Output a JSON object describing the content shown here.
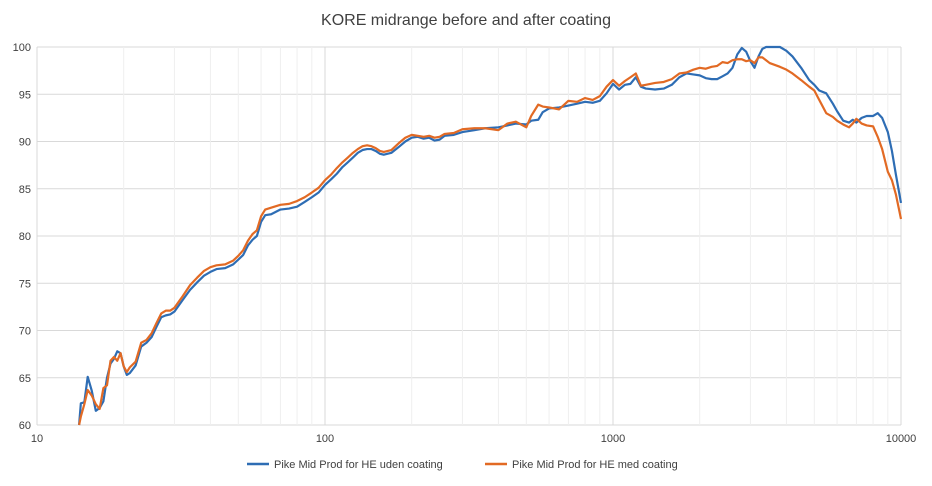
{
  "chart_data": {
    "type": "line",
    "title": "KORE midrange before and after coating",
    "xlabel": "",
    "ylabel": "",
    "x_scale": "log",
    "xlim": [
      10,
      10000
    ],
    "ylim": [
      60,
      100
    ],
    "x_ticks": [
      "10",
      "100",
      "1000",
      "10000"
    ],
    "y_ticks": [
      "60",
      "65",
      "70",
      "75",
      "80",
      "85",
      "90",
      "95",
      "100"
    ],
    "grid": true,
    "legend_position": "bottom",
    "series": [
      {
        "name": "Pike Mid Prod for HE uden coating",
        "color": "#2E6DB4",
        "points": [
          [
            14,
            60
          ],
          [
            14.2,
            62.3
          ],
          [
            14.6,
            62.4
          ],
          [
            15,
            65.1
          ],
          [
            15.5,
            63.6
          ],
          [
            16,
            61.5
          ],
          [
            16.5,
            61.8
          ],
          [
            17,
            62.5
          ],
          [
            17.5,
            65
          ],
          [
            18,
            66.5
          ],
          [
            18.5,
            67
          ],
          [
            19,
            67.8
          ],
          [
            19.5,
            67.6
          ],
          [
            20,
            66.2
          ],
          [
            20.5,
            65.3
          ],
          [
            21,
            65.5
          ],
          [
            22,
            66.3
          ],
          [
            23,
            68.3
          ],
          [
            24,
            68.7
          ],
          [
            25,
            69.3
          ],
          [
            26,
            70.4
          ],
          [
            27,
            71.4
          ],
          [
            28,
            71.6
          ],
          [
            29,
            71.7
          ],
          [
            30,
            72
          ],
          [
            32,
            73.2
          ],
          [
            34,
            74.3
          ],
          [
            36,
            75.1
          ],
          [
            38,
            75.8
          ],
          [
            40,
            76.2
          ],
          [
            42,
            76.5
          ],
          [
            45,
            76.6
          ],
          [
            48,
            77
          ],
          [
            50,
            77.5
          ],
          [
            52,
            78
          ],
          [
            54,
            79
          ],
          [
            56,
            79.6
          ],
          [
            58,
            80
          ],
          [
            60,
            81.5
          ],
          [
            62,
            82.2
          ],
          [
            65,
            82.3
          ],
          [
            70,
            82.8
          ],
          [
            75,
            82.9
          ],
          [
            80,
            83.1
          ],
          [
            85,
            83.6
          ],
          [
            90,
            84.1
          ],
          [
            95,
            84.6
          ],
          [
            100,
            85.4
          ],
          [
            105,
            86
          ],
          [
            110,
            86.6
          ],
          [
            115,
            87.3
          ],
          [
            120,
            87.8
          ],
          [
            125,
            88.3
          ],
          [
            130,
            88.8
          ],
          [
            135,
            89.1
          ],
          [
            140,
            89.2
          ],
          [
            145,
            89.2
          ],
          [
            150,
            89
          ],
          [
            155,
            88.7
          ],
          [
            160,
            88.6
          ],
          [
            170,
            88.8
          ],
          [
            180,
            89.4
          ],
          [
            190,
            90
          ],
          [
            200,
            90.4
          ],
          [
            210,
            90.5
          ],
          [
            220,
            90.3
          ],
          [
            230,
            90.4
          ],
          [
            240,
            90.1
          ],
          [
            250,
            90.2
          ],
          [
            260,
            90.6
          ],
          [
            280,
            90.7
          ],
          [
            300,
            91
          ],
          [
            330,
            91.2
          ],
          [
            360,
            91.4
          ],
          [
            400,
            91.5
          ],
          [
            430,
            91.7
          ],
          [
            460,
            91.9
          ],
          [
            500,
            91.8
          ],
          [
            520,
            92.2
          ],
          [
            550,
            92.3
          ],
          [
            570,
            93.1
          ],
          [
            600,
            93.5
          ],
          [
            650,
            93.6
          ],
          [
            700,
            93.8
          ],
          [
            750,
            94
          ],
          [
            800,
            94.2
          ],
          [
            850,
            94.1
          ],
          [
            900,
            94.3
          ],
          [
            950,
            95.1
          ],
          [
            1000,
            96.1
          ],
          [
            1050,
            95.5
          ],
          [
            1100,
            96
          ],
          [
            1150,
            96.1
          ],
          [
            1200,
            96.8
          ],
          [
            1250,
            95.8
          ],
          [
            1300,
            95.6
          ],
          [
            1400,
            95.5
          ],
          [
            1500,
            95.6
          ],
          [
            1600,
            96
          ],
          [
            1700,
            96.8
          ],
          [
            1800,
            97.2
          ],
          [
            1900,
            97.1
          ],
          [
            2000,
            97
          ],
          [
            2100,
            96.7
          ],
          [
            2200,
            96.6
          ],
          [
            2300,
            96.6
          ],
          [
            2400,
            96.9
          ],
          [
            2500,
            97.2
          ],
          [
            2600,
            97.8
          ],
          [
            2700,
            99.2
          ],
          [
            2800,
            99.9
          ],
          [
            2900,
            99.5
          ],
          [
            3000,
            98.5
          ],
          [
            3100,
            97.8
          ],
          [
            3200,
            99
          ],
          [
            3300,
            99.8
          ],
          [
            3400,
            100
          ],
          [
            3500,
            100
          ],
          [
            3800,
            100
          ],
          [
            4000,
            99.6
          ],
          [
            4200,
            99
          ],
          [
            4500,
            97.8
          ],
          [
            4800,
            96.5
          ],
          [
            5000,
            96
          ],
          [
            5200,
            95.4
          ],
          [
            5500,
            95.1
          ],
          [
            5800,
            94
          ],
          [
            6000,
            93.2
          ],
          [
            6300,
            92.2
          ],
          [
            6600,
            92
          ],
          [
            6800,
            92.3
          ],
          [
            7000,
            92
          ],
          [
            7300,
            92.5
          ],
          [
            7600,
            92.7
          ],
          [
            8000,
            92.7
          ],
          [
            8300,
            93
          ],
          [
            8600,
            92.5
          ],
          [
            9000,
            91
          ],
          [
            9300,
            89
          ],
          [
            9600,
            86.5
          ],
          [
            10000,
            83.5
          ]
        ]
      },
      {
        "name": "Pike Mid Prod for HE med coating",
        "color": "#E26A24",
        "points": [
          [
            14,
            59.9
          ],
          [
            14.2,
            60.9
          ],
          [
            14.6,
            62.2
          ],
          [
            15,
            63.7
          ],
          [
            15.5,
            63.1
          ],
          [
            16,
            62.2
          ],
          [
            16.5,
            61.7
          ],
          [
            17,
            63.9
          ],
          [
            17.5,
            64.2
          ],
          [
            18,
            66.8
          ],
          [
            18.5,
            67.2
          ],
          [
            19,
            66.8
          ],
          [
            19.5,
            67.6
          ],
          [
            20,
            66.2
          ],
          [
            20.5,
            65.6
          ],
          [
            21,
            66.1
          ],
          [
            22,
            66.7
          ],
          [
            23,
            68.7
          ],
          [
            24,
            69
          ],
          [
            25,
            69.7
          ],
          [
            26,
            70.8
          ],
          [
            27,
            71.8
          ],
          [
            28,
            72.1
          ],
          [
            29,
            72.1
          ],
          [
            30,
            72.4
          ],
          [
            32,
            73.6
          ],
          [
            34,
            74.8
          ],
          [
            36,
            75.6
          ],
          [
            38,
            76.3
          ],
          [
            40,
            76.7
          ],
          [
            42,
            76.9
          ],
          [
            45,
            77
          ],
          [
            48,
            77.4
          ],
          [
            50,
            77.9
          ],
          [
            52,
            78.5
          ],
          [
            54,
            79.5
          ],
          [
            56,
            80.2
          ],
          [
            58,
            80.6
          ],
          [
            60,
            82.1
          ],
          [
            62,
            82.8
          ],
          [
            65,
            83
          ],
          [
            70,
            83.3
          ],
          [
            75,
            83.4
          ],
          [
            80,
            83.7
          ],
          [
            85,
            84.1
          ],
          [
            90,
            84.6
          ],
          [
            95,
            85.1
          ],
          [
            100,
            85.9
          ],
          [
            105,
            86.5
          ],
          [
            110,
            87.2
          ],
          [
            115,
            87.8
          ],
          [
            120,
            88.3
          ],
          [
            125,
            88.8
          ],
          [
            130,
            89.2
          ],
          [
            135,
            89.5
          ],
          [
            140,
            89.6
          ],
          [
            145,
            89.5
          ],
          [
            150,
            89.3
          ],
          [
            155,
            89
          ],
          [
            160,
            88.9
          ],
          [
            170,
            89.1
          ],
          [
            180,
            89.8
          ],
          [
            190,
            90.4
          ],
          [
            200,
            90.7
          ],
          [
            210,
            90.6
          ],
          [
            220,
            90.5
          ],
          [
            230,
            90.6
          ],
          [
            240,
            90.4
          ],
          [
            250,
            90.5
          ],
          [
            260,
            90.8
          ],
          [
            280,
            90.9
          ],
          [
            300,
            91.3
          ],
          [
            330,
            91.4
          ],
          [
            360,
            91.4
          ],
          [
            400,
            91.2
          ],
          [
            430,
            91.9
          ],
          [
            460,
            92.1
          ],
          [
            500,
            91.5
          ],
          [
            520,
            92.7
          ],
          [
            550,
            93.9
          ],
          [
            570,
            93.7
          ],
          [
            600,
            93.6
          ],
          [
            650,
            93.4
          ],
          [
            700,
            94.3
          ],
          [
            750,
            94.2
          ],
          [
            800,
            94.6
          ],
          [
            850,
            94.4
          ],
          [
            900,
            94.8
          ],
          [
            950,
            95.8
          ],
          [
            1000,
            96.5
          ],
          [
            1050,
            95.9
          ],
          [
            1100,
            96.4
          ],
          [
            1150,
            96.8
          ],
          [
            1200,
            97.2
          ],
          [
            1250,
            95.9
          ],
          [
            1300,
            96
          ],
          [
            1400,
            96.2
          ],
          [
            1500,
            96.3
          ],
          [
            1600,
            96.6
          ],
          [
            1700,
            97.2
          ],
          [
            1800,
            97.3
          ],
          [
            1900,
            97.6
          ],
          [
            2000,
            97.8
          ],
          [
            2100,
            97.7
          ],
          [
            2200,
            97.9
          ],
          [
            2300,
            98
          ],
          [
            2400,
            98.4
          ],
          [
            2500,
            98.3
          ],
          [
            2600,
            98.6
          ],
          [
            2700,
            98.7
          ],
          [
            2800,
            98.7
          ],
          [
            2900,
            98.5
          ],
          [
            3000,
            98.6
          ],
          [
            3100,
            98.3
          ],
          [
            3200,
            98.9
          ],
          [
            3300,
            98.9
          ],
          [
            3400,
            98.6
          ],
          [
            3500,
            98.3
          ],
          [
            3800,
            97.9
          ],
          [
            4000,
            97.6
          ],
          [
            4200,
            97.2
          ],
          [
            4500,
            96.5
          ],
          [
            4800,
            95.8
          ],
          [
            5000,
            95.4
          ],
          [
            5200,
            94.4
          ],
          [
            5500,
            93
          ],
          [
            5800,
            92.6
          ],
          [
            6000,
            92.2
          ],
          [
            6300,
            91.8
          ],
          [
            6600,
            91.5
          ],
          [
            6800,
            91.9
          ],
          [
            7000,
            92.4
          ],
          [
            7300,
            91.9
          ],
          [
            7600,
            91.7
          ],
          [
            8000,
            91.6
          ],
          [
            8300,
            90.5
          ],
          [
            8600,
            89.2
          ],
          [
            9000,
            86.8
          ],
          [
            9300,
            85.9
          ],
          [
            9600,
            84.4
          ],
          [
            10000,
            81.8
          ]
        ]
      }
    ]
  }
}
